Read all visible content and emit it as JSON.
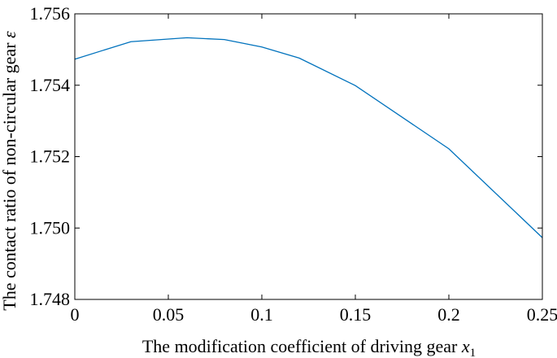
{
  "chart_data": {
    "type": "line",
    "title": "",
    "xlabel": "The modification coefficient of driving gear ",
    "xlabel_symbol": "x",
    "xlabel_subscript": "1",
    "ylabel": "The contact ratio of non-circular gear ",
    "ylabel_symbol": "ε",
    "xlim": [
      0,
      0.25
    ],
    "ylim": [
      1.748,
      1.756
    ],
    "xticks": [
      0,
      0.05,
      0.1,
      0.15,
      0.2,
      0.25
    ],
    "xtick_labels": [
      "0",
      "0.05",
      "0.1",
      "0.15",
      "0.2",
      "0.25"
    ],
    "yticks": [
      1.748,
      1.75,
      1.752,
      1.754,
      1.756
    ],
    "ytick_labels": [
      "1.748",
      "1.750",
      "1.752",
      "1.754",
      "1.756"
    ],
    "grid": false,
    "series": [
      {
        "color": "#0072BD",
        "x": [
          0,
          0.03,
          0.06,
          0.08,
          0.1,
          0.12,
          0.15,
          0.2,
          0.25
        ],
        "y": [
          1.75473,
          1.75522,
          1.75533,
          1.75528,
          1.75507,
          1.75476,
          1.75399,
          1.75222,
          1.74973
        ]
      }
    ]
  }
}
